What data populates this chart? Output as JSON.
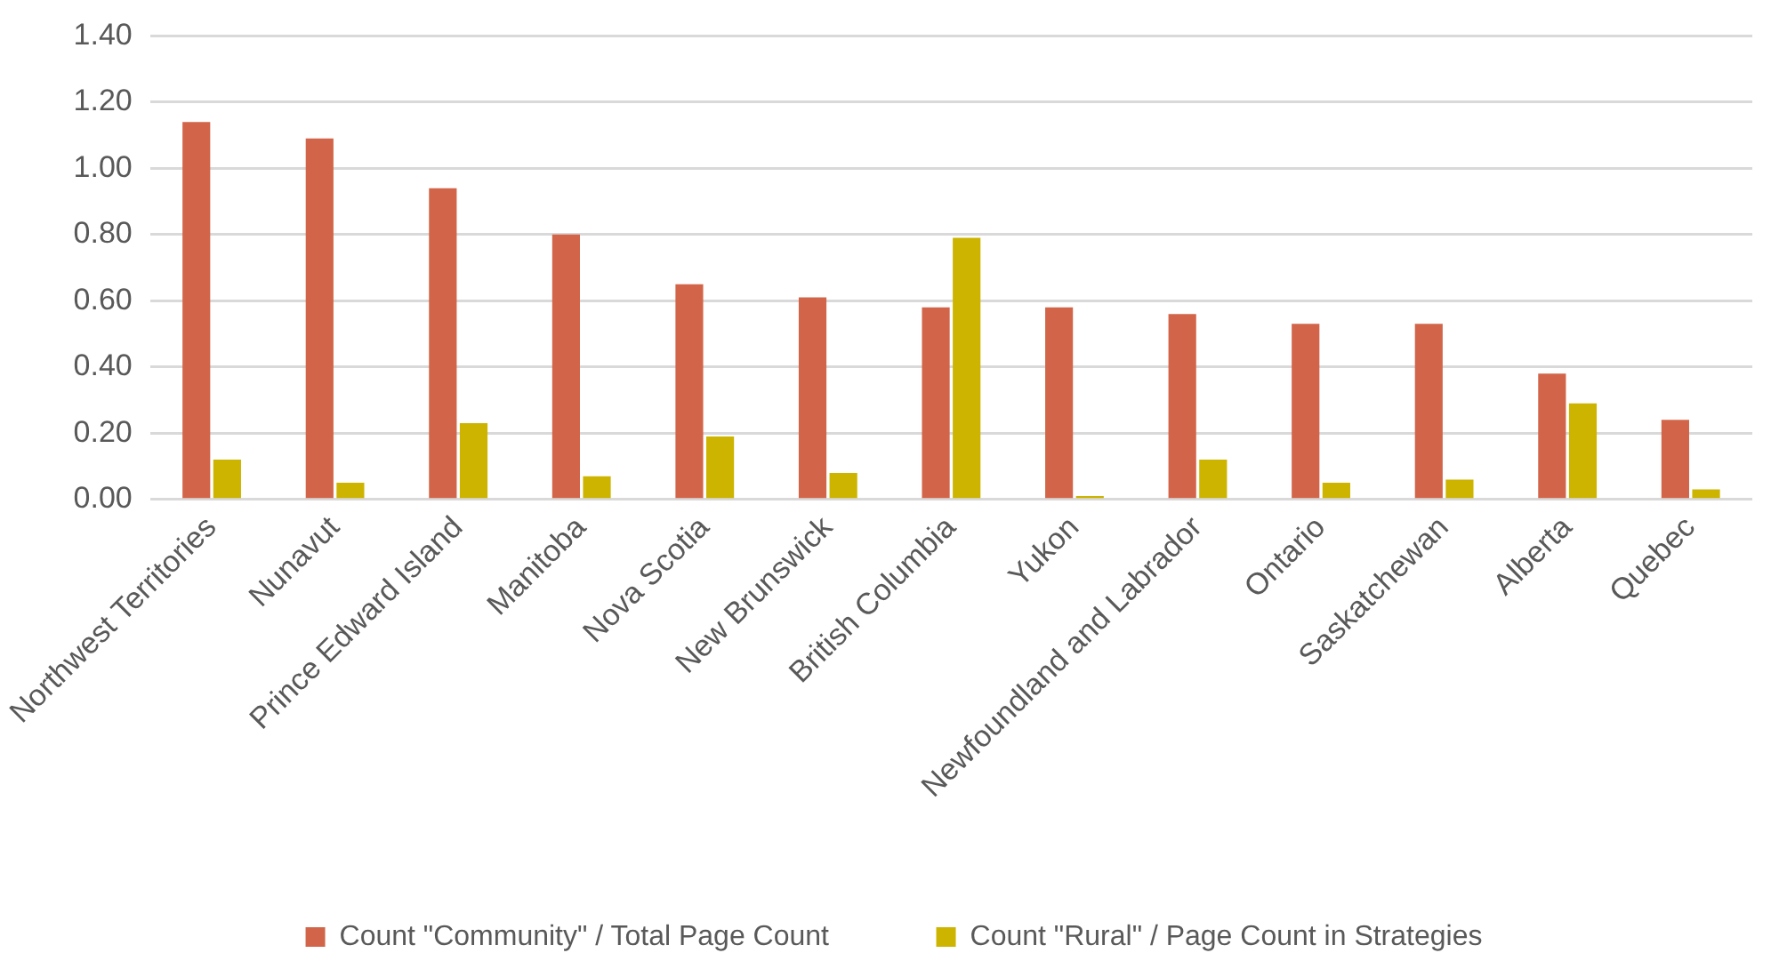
{
  "chart_data": {
    "type": "bar",
    "categories": [
      "Northwest Territories",
      "Nunavut",
      "Prince Edward Island",
      "Manitoba",
      "Nova Scotia",
      "New Brunswick",
      "British Columbia",
      "Yukon",
      "Newfoundland and Labrador",
      "Ontario",
      "Saskatchewan",
      "Alberta",
      "Quebec"
    ],
    "series": [
      {
        "name": "Count \"Community\" / Total Page Count",
        "color": "#d26549",
        "values": [
          1.14,
          1.09,
          0.94,
          0.8,
          0.65,
          0.61,
          0.58,
          0.58,
          0.56,
          0.53,
          0.53,
          0.38,
          0.24
        ]
      },
      {
        "name": "Count \"Rural\" / Page Count in Strategies",
        "color": "#ccb400",
        "values": [
          0.12,
          0.05,
          0.23,
          0.07,
          0.19,
          0.08,
          0.79,
          0.01,
          0.12,
          0.05,
          0.06,
          0.29,
          0.03
        ]
      }
    ],
    "ylim": [
      0,
      1.4
    ],
    "yticks": [
      {
        "value": 0,
        "label": "0.00"
      },
      {
        "value": 0.2,
        "label": "0.20"
      },
      {
        "value": 0.4,
        "label": "0.40"
      },
      {
        "value": 0.6,
        "label": "0.60"
      },
      {
        "value": 0.8,
        "label": "0.80"
      },
      {
        "value": 1,
        "label": "1.00"
      },
      {
        "value": 1.2,
        "label": "1.20"
      },
      {
        "value": 1.4,
        "label": "1.40"
      }
    ],
    "grid": "y",
    "legend": "bottom"
  }
}
